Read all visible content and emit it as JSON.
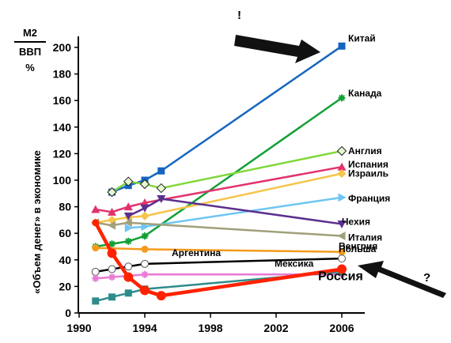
{
  "chart_data": {
    "type": "line",
    "ylabel_top": "М2",
    "ylabel_bottom": "ВВП",
    "ylabel_unit": "%",
    "ylabel_side": "«Объем денег» в экономике",
    "xlim": [
      1990,
      2007
    ],
    "ylim": [
      0,
      200
    ],
    "xticks": [
      1990,
      1994,
      1998,
      2002,
      2006
    ],
    "yticks": [
      0,
      20,
      40,
      60,
      80,
      100,
      120,
      140,
      160,
      180,
      200
    ],
    "annotations": {
      "exclaim": "!",
      "question": "?"
    },
    "series": [
      {
        "name": "Китай",
        "color": "#1565c0",
        "marker": "square",
        "x": [
          1992,
          1993,
          1994,
          1995,
          2006
        ],
        "y": [
          91,
          96,
          100,
          107,
          201
        ]
      },
      {
        "name": "Канада",
        "color": "#13a036",
        "marker": "star",
        "x": [
          1991,
          1992,
          1993,
          1994,
          2006
        ],
        "y": [
          50,
          52,
          54,
          58,
          162
        ]
      },
      {
        "name": "Англия",
        "color": "#7fd83a",
        "marker": "diamond-open",
        "x": [
          1992,
          1993,
          1994,
          1995,
          2006
        ],
        "y": [
          91,
          99,
          97,
          94,
          122
        ]
      },
      {
        "name": "Испания",
        "color": "#e2326d",
        "marker": "triangle",
        "x": [
          1991,
          1992,
          1993,
          1994,
          2006
        ],
        "y": [
          78,
          76,
          80,
          83,
          110
        ]
      },
      {
        "name": "Израиль",
        "color": "#f5c44a",
        "marker": "diamond",
        "x": [
          1991,
          1992,
          1993,
          1994,
          2006
        ],
        "y": [
          68,
          70,
          72,
          73,
          105
        ]
      },
      {
        "name": "Франция",
        "color": "#6ec6f3",
        "marker": "triangle-right",
        "x": [
          1993,
          1994,
          2006
        ],
        "y": [
          64,
          65,
          87
        ]
      },
      {
        "name": "Чехия",
        "color": "#5b2f8e",
        "marker": "triangle-down",
        "x": [
          1993,
          1994,
          1995,
          2006
        ],
        "y": [
          73,
          79,
          86,
          67
        ]
      },
      {
        "name": "Италия",
        "color": "#a0a07a",
        "marker": "triangle-left",
        "x": [
          1991,
          1992,
          1993,
          2006
        ],
        "y": [
          68,
          66,
          68,
          58
        ]
      },
      {
        "name": "Венгрия",
        "color": "#f59a1c",
        "marker": "circle",
        "x": [
          1991,
          1994,
          2006
        ],
        "y": [
          49,
          48,
          46
        ]
      },
      {
        "name": "Польша",
        "color": "#000000",
        "marker": "circle-open",
        "x": [
          1991,
          1992,
          1993,
          1994,
          2006
        ],
        "y": [
          31,
          33,
          35,
          37,
          41
        ]
      },
      {
        "name": "Мексика",
        "color": "#e87ad6",
        "marker": "star",
        "x": [
          1991,
          1992,
          1993,
          1994,
          2006
        ],
        "y": [
          26,
          27,
          28,
          29,
          29
        ]
      },
      {
        "name": "Аргентина",
        "color": "#2e8b8b",
        "marker": "square",
        "x": [
          1991,
          1992,
          1993,
          1994,
          2006
        ],
        "y": [
          9,
          12,
          15,
          18,
          31
        ]
      },
      {
        "name": "Россия",
        "color": "#ff2200",
        "marker": "circle",
        "x": [
          1991,
          1992,
          1993,
          1994,
          1995,
          2006
        ],
        "y": [
          68,
          45,
          27,
          17,
          13,
          33
        ]
      }
    ]
  }
}
